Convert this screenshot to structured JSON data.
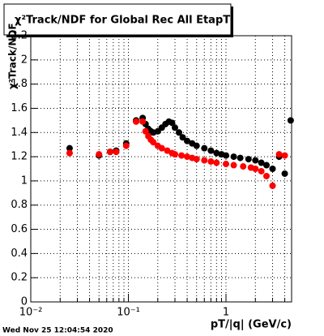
{
  "chart_data": {
    "type": "scatter",
    "title": "χ²Track/NDF for Global Rec All EtapT",
    "y_label": "χ²Track/NDF",
    "x_label": "pT/|q| (GeV/c)",
    "timestamp": "Wed Nov 25 12:04:54 2020",
    "log_x": true,
    "grid": true,
    "xlim": [
      0.01,
      4.7
    ],
    "xticks": [
      {
        "value": 0.01,
        "label": "10⁻²"
      },
      {
        "value": 0.1,
        "label": "10⁻¹"
      },
      {
        "value": 1,
        "label": "1"
      }
    ],
    "xgrid": [
      0.02,
      0.03,
      0.04,
      0.05,
      0.06,
      0.07,
      0.08,
      0.09,
      0.2,
      0.3,
      0.4,
      0.5,
      0.6,
      0.7,
      0.8,
      0.9,
      2,
      3,
      4
    ],
    "ylim": [
      0,
      2.2
    ],
    "yticks": [
      0,
      0.2,
      0.4,
      0.6,
      0.8,
      1,
      1.2,
      1.4,
      1.6,
      1.8,
      2,
      2.2
    ],
    "series": [
      {
        "color": "#000000",
        "x": [
          0.025,
          0.05,
          0.065,
          0.075,
          0.095,
          0.12,
          0.14,
          0.15,
          0.16,
          0.17,
          0.18,
          0.2,
          0.22,
          0.24,
          0.26,
          0.28,
          0.3,
          0.33,
          0.36,
          0.4,
          0.45,
          0.5,
          0.6,
          0.7,
          0.8,
          0.9,
          1.0,
          1.2,
          1.4,
          1.7,
          2.0,
          2.3,
          2.6,
          3.0,
          3.5,
          4.0,
          4.6
        ],
        "values": [
          1.27,
          1.21,
          1.24,
          1.25,
          1.31,
          1.5,
          1.52,
          1.47,
          1.43,
          1.41,
          1.4,
          1.41,
          1.44,
          1.47,
          1.49,
          1.48,
          1.44,
          1.4,
          1.36,
          1.33,
          1.31,
          1.29,
          1.27,
          1.25,
          1.23,
          1.22,
          1.21,
          1.2,
          1.19,
          1.18,
          1.17,
          1.15,
          1.13,
          1.1,
          1.2,
          1.06,
          1.5
        ]
      },
      {
        "color": "#ff0000",
        "x": [
          0.025,
          0.05,
          0.065,
          0.075,
          0.095,
          0.12,
          0.14,
          0.15,
          0.16,
          0.17,
          0.18,
          0.2,
          0.22,
          0.25,
          0.28,
          0.3,
          0.35,
          0.4,
          0.45,
          0.5,
          0.6,
          0.7,
          0.8,
          1.0,
          1.2,
          1.5,
          1.8,
          2.0,
          2.3,
          2.6,
          3.0,
          3.5,
          4.0
        ],
        "values": [
          1.23,
          1.22,
          1.24,
          1.24,
          1.29,
          1.49,
          1.49,
          1.41,
          1.37,
          1.34,
          1.32,
          1.29,
          1.27,
          1.25,
          1.23,
          1.22,
          1.21,
          1.2,
          1.19,
          1.18,
          1.17,
          1.16,
          1.15,
          1.14,
          1.13,
          1.12,
          1.11,
          1.1,
          1.08,
          1.04,
          0.96,
          1.22,
          1.21
        ]
      }
    ]
  }
}
